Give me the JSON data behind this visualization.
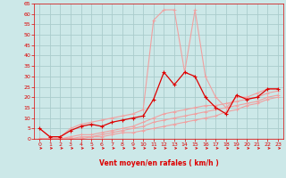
{
  "x": [
    0,
    1,
    2,
    3,
    4,
    5,
    6,
    7,
    8,
    9,
    10,
    11,
    12,
    13,
    14,
    15,
    16,
    17,
    18,
    19,
    20,
    21,
    22,
    23
  ],
  "line_main_y": [
    5,
    1,
    1,
    4,
    6,
    7,
    6,
    8,
    9,
    10,
    11,
    19,
    32,
    26,
    32,
    30,
    20,
    15,
    12,
    21,
    19,
    20,
    24,
    24
  ],
  "line_rafale_y": [
    5,
    1,
    1,
    5,
    7,
    8,
    9,
    10,
    11,
    12,
    14,
    57,
    62,
    62,
    32,
    62,
    30,
    20,
    15,
    20,
    20,
    22,
    24,
    24
  ],
  "line3_y": [
    0,
    0,
    0,
    1,
    2,
    2,
    3,
    4,
    5,
    6,
    8,
    10,
    12,
    13,
    14,
    15,
    16,
    16,
    17,
    18,
    19,
    20,
    22,
    23
  ],
  "line4_y": [
    0,
    0,
    0,
    0,
    1,
    1,
    2,
    3,
    4,
    5,
    6,
    8,
    9,
    10,
    11,
    12,
    13,
    14,
    15,
    16,
    17,
    18,
    20,
    21
  ],
  "line5_y": [
    0,
    0,
    0,
    0,
    0,
    1,
    1,
    2,
    3,
    3,
    4,
    5,
    6,
    7,
    8,
    9,
    10,
    11,
    13,
    14,
    16,
    17,
    19,
    20
  ],
  "bg_color": "#cce8e8",
  "grid_color": "#aacccc",
  "color_dark": "#dd0000",
  "color_mid": "#ee6666",
  "color_light": "#f0a0a0",
  "xlabel": "Vent moyen/en rafales ( km/h )",
  "ylim": [
    0,
    65
  ],
  "yticks": [
    0,
    5,
    10,
    15,
    20,
    25,
    30,
    35,
    40,
    45,
    50,
    55,
    60,
    65
  ],
  "xlim": [
    -0.5,
    23.5
  ]
}
